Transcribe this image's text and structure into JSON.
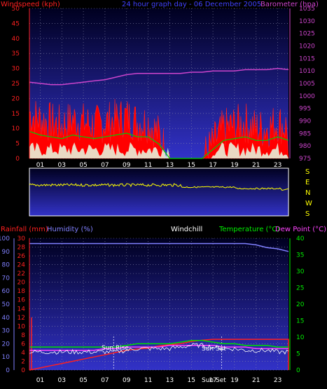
{
  "top": {
    "title": "24 hour graph day - 06 December 2005",
    "left_label": "Windspeed (kph)",
    "right_label": "Barometer (hpa)",
    "left_ticks": [
      0,
      5,
      10,
      15,
      20,
      25,
      30,
      35,
      40,
      45,
      50
    ],
    "right_ticks": [
      975,
      980,
      985,
      990,
      995,
      1000,
      1005,
      1010,
      1015,
      1020,
      1025,
      1030,
      1035
    ],
    "x_ticks": [
      "01",
      "03",
      "05",
      "07",
      "09",
      "11",
      "13",
      "15",
      "17",
      "19",
      "21",
      "23"
    ],
    "colors": {
      "windspeed": "#ff0000",
      "gust": "#00cc00",
      "barometer": "#cc44cc",
      "calm": "#e6ffe6",
      "bg_top": "#000020",
      "bg_bottom": "#3030c8"
    }
  },
  "direction": {
    "labels": [
      "S",
      "E",
      "N",
      "W",
      "S"
    ],
    "color": "#ffff00"
  },
  "bottom": {
    "rain_label": "Rainfall (mm)",
    "humidity_label": "Humidity (%)",
    "windchill_label": "Windchill",
    "temp_label": "Temperature (°C)",
    "dew_label": "Dew Point (°C)",
    "humidity_ticks": [
      0,
      10,
      20,
      30,
      40,
      50,
      60,
      70,
      80,
      90,
      100
    ],
    "rain_ticks": [
      0,
      2,
      4,
      6,
      8,
      10,
      12,
      14,
      16,
      18,
      20,
      22,
      24,
      26,
      28,
      30
    ],
    "temp_ticks": [
      0,
      5,
      10,
      15,
      20,
      25,
      30,
      35,
      40
    ],
    "x_ticks": [
      "01",
      "03",
      "05",
      "07",
      "09",
      "11",
      "13",
      "15",
      "17",
      "19",
      "21",
      "23"
    ],
    "sunrise_label": "Sun Rise",
    "sunset_label": "Sun Set",
    "sunset_axis_label": "Sun Set",
    "colors": {
      "rain": "#ff2020",
      "humidity": "#8080ff",
      "temperature": "#00dd00",
      "dew": "#ff44ff",
      "windchill": "#ffffff",
      "bg_top": "#000020",
      "bg_bottom": "#3030c8"
    }
  },
  "chart_data": [
    {
      "type": "line",
      "title": "24 hour graph day - 06 December 2005",
      "x_hours": [
        0,
        1,
        2,
        3,
        4,
        5,
        6,
        7,
        8,
        9,
        10,
        11,
        12,
        13,
        14,
        15,
        16,
        17,
        18,
        19,
        20,
        21,
        22,
        23,
        24
      ],
      "series": [
        {
          "name": "Windspeed (kph)",
          "values": [
            15,
            13,
            12,
            11,
            13,
            12,
            11,
            12,
            13,
            14,
            12,
            12,
            8,
            0,
            0,
            0,
            0,
            5,
            10,
            11,
            12,
            10,
            10,
            12,
            10
          ]
        },
        {
          "name": "Barometer (hpa)",
          "values": [
            1005.5,
            1005,
            1004.5,
            1004.5,
            1005,
            1005.5,
            1006,
            1006.5,
            1007.5,
            1008.5,
            1009,
            1009,
            1009,
            1009,
            1009,
            1009.5,
            1009.5,
            1010,
            1010,
            1010,
            1010.5,
            1010.5,
            1010.5,
            1011,
            1010.5
          ]
        }
      ],
      "ylim": [
        0,
        50
      ],
      "y2lim": [
        975,
        1035
      ]
    },
    {
      "type": "line",
      "x_hours": [
        0,
        1,
        2,
        3,
        4,
        5,
        6,
        7,
        8,
        9,
        10,
        11,
        12,
        13,
        14,
        15,
        16,
        17,
        18,
        19,
        20,
        21,
        22,
        23,
        24
      ],
      "series": [
        {
          "name": "Humidity (%)",
          "values": [
            96,
            96,
            96,
            96,
            96,
            96,
            96,
            96,
            96,
            96,
            96,
            96,
            96,
            96,
            96,
            96,
            96,
            96,
            96,
            96,
            96,
            95,
            93,
            92,
            90
          ]
        },
        {
          "name": "Rainfall (mm)",
          "values": [
            0,
            0.5,
            1,
            1.5,
            2,
            2.5,
            3,
            3.5,
            4,
            4.5,
            4.8,
            5,
            5.5,
            5.8,
            6,
            6.5,
            6.8,
            7,
            7,
            7,
            7,
            7,
            7,
            7,
            7
          ]
        },
        {
          "name": "Temperature (°C)",
          "values": [
            7,
            7,
            7,
            7,
            7,
            7,
            7,
            7,
            7,
            7.5,
            8,
            8,
            8,
            8,
            8.5,
            9,
            9,
            8.5,
            8,
            8,
            7.5,
            7.5,
            7.5,
            7,
            7
          ]
        },
        {
          "name": "Dew Point (°C)",
          "values": [
            6,
            6,
            6,
            6,
            6,
            6,
            6,
            6.5,
            6.5,
            7,
            7,
            7,
            7,
            7.5,
            7.5,
            7.5,
            7.5,
            7.5,
            7,
            7,
            7,
            6.5,
            6.5,
            6.5,
            6.5
          ]
        }
      ],
      "ylim": [
        0,
        100
      ],
      "y2lim": [
        0,
        40
      ]
    }
  ]
}
